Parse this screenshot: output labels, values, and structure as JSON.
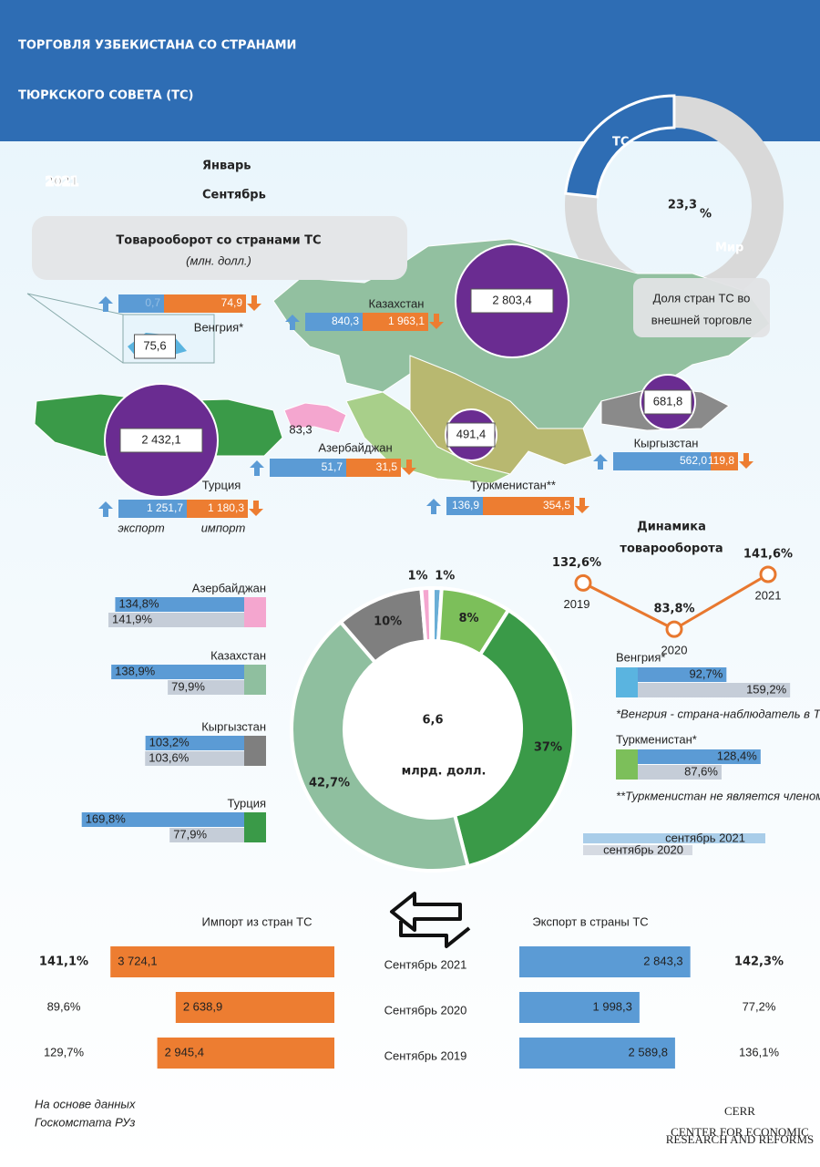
{
  "header": {
    "title": [
      "ТОРГОВЛЯ УЗБЕКИСТАНА СО СТРАНАМИ",
      "ТЮРКСКОГО СОВЕТА (ТС)"
    ]
  },
  "period": {
    "year": "2021",
    "months": [
      "Январь",
      "Сентябрь"
    ]
  },
  "share": {
    "tc_label": "ТС",
    "world_label": "Мир",
    "value": {
      "value": 23.3,
      "label": "23,3"
    },
    "unit": "%",
    "caption": [
      "Доля стран ТС во",
      "внешней торговле"
    ],
    "tc_color": "#2e6db4",
    "world_color": "#d9d9d9"
  },
  "turnover": {
    "title": "Товарооборот со странами ТС",
    "unit": "(млн. долл.)",
    "export_label": "экспорт",
    "import_label": "импорт",
    "countries": [
      {
        "name": "Венгрия*",
        "total": "75,6",
        "export": "0,7",
        "import": "74,9"
      },
      {
        "name": "Казахстан",
        "total": "2 803,4",
        "export": "840,3",
        "import": "1 963,1"
      },
      {
        "name": "Азербайджан",
        "total": "83,3",
        "export": "51,7",
        "import": "31,5"
      },
      {
        "name": "Турция",
        "total": "2 432,1",
        "export": "1 251,7",
        "import": "1 180,3"
      },
      {
        "name": "Туркменистан**",
        "total": "491,4",
        "export": "136,9",
        "import": "354,5"
      },
      {
        "name": "Кыргызстан",
        "total": "681,8",
        "export": "562,0",
        "import": "119,8"
      }
    ]
  },
  "growth": {
    "countries": [
      {
        "name": "Азербайджан",
        "color": "#f4a6cf",
        "y2021": {
          "value": 134.8,
          "label": "134,8%"
        },
        "y2020": {
          "value": 141.9,
          "label": "141,9%"
        }
      },
      {
        "name": "Казахстан",
        "color": "#8fbf9f",
        "y2021": {
          "value": 138.9,
          "label": "138,9%"
        },
        "y2020": {
          "value": 79.9,
          "label": "79,9%"
        }
      },
      {
        "name": "Кыргызстан",
        "color": "#7f7f7f",
        "y2021": {
          "value": 103.2,
          "label": "103,2%"
        },
        "y2020": {
          "value": 103.6,
          "label": "103,6%"
        }
      },
      {
        "name": "Турция",
        "color": "#3a9a48",
        "y2021": {
          "value": 169.8,
          "label": "169,8%"
        },
        "y2020": {
          "value": 77.9,
          "label": "77,9%"
        }
      }
    ],
    "observers": [
      {
        "name": "Венгрия*",
        "color": "#5ab4e0",
        "y2021": {
          "value": 92.7,
          "label": "92,7%"
        },
        "y2020": {
          "value": 159.2,
          "label": "159,2%"
        },
        "note": "*Венгрия - страна-наблюдатель в ТС"
      },
      {
        "name": "Туркменистан*",
        "color": "#7cbf5a",
        "y2021": {
          "value": 128.4,
          "label": "128,4%"
        },
        "y2020": {
          "value": 87.6,
          "label": "87,6%"
        },
        "note": "**Туркменистан  не является членом ТС"
      }
    ],
    "legend": [
      "сентябрь 2021",
      "сентябрь 2020"
    ]
  },
  "structure": {
    "total": "6,6",
    "unit": "млрд. долл.",
    "segments": [
      {
        "value": 1,
        "label": "1%",
        "color": "#6aaed6"
      },
      {
        "value": 8,
        "label": "8%",
        "color": "#7cbf5a"
      },
      {
        "value": 37,
        "label": "37%",
        "color": "#3a9a48"
      },
      {
        "value": 42.7,
        "label": "42,7%",
        "color": "#8fbf9f"
      },
      {
        "value": 10,
        "label": "10%",
        "color": "#7f7f7f"
      },
      {
        "value": 1,
        "label": "1%",
        "color": "#f4a6cf"
      }
    ]
  },
  "dynamics": {
    "title": [
      "Динамика",
      "товарооборота"
    ],
    "years": [
      "2019",
      "2020",
      "2021"
    ],
    "values": [
      {
        "value": 132.6,
        "label": "132,6%"
      },
      {
        "value": 83.8,
        "label": "83,8%"
      },
      {
        "value": 141.6,
        "label": "141,6%"
      }
    ],
    "color": "#e8782f"
  },
  "monthly": {
    "import_title": "Импорт из стран ТС",
    "export_title": "Экспорт в страны ТС",
    "rows": [
      {
        "period": "Сентябрь 2021",
        "import": {
          "value": 3724.1,
          "label": "3 724,1"
        },
        "import_growth": "141,1%",
        "export": {
          "value": 2843.3,
          "label": "2 843,3"
        },
        "export_growth": "142,3%"
      },
      {
        "period": "Сентябрь 2020",
        "import": {
          "value": 2638.9,
          "label": "2 638,9"
        },
        "import_growth": "89,6%",
        "export": {
          "value": 1998.3,
          "label": "1 998,3"
        },
        "export_growth": "77,2%"
      },
      {
        "period": "Сентябрь 2019",
        "import": {
          "value": 2945.4,
          "label": "2 945,4"
        },
        "import_growth": "129,7%",
        "export": {
          "value": 2589.8,
          "label": "2 589,8"
        },
        "export_growth": "136,1%"
      }
    ]
  },
  "footer": {
    "source": [
      "На основе данных",
      "Госкомстата РУз"
    ],
    "logo": "CERR",
    "logo_sub": [
      "CENTER FOR ECONOMIC",
      "RESEARCH AND REFORMS"
    ]
  }
}
